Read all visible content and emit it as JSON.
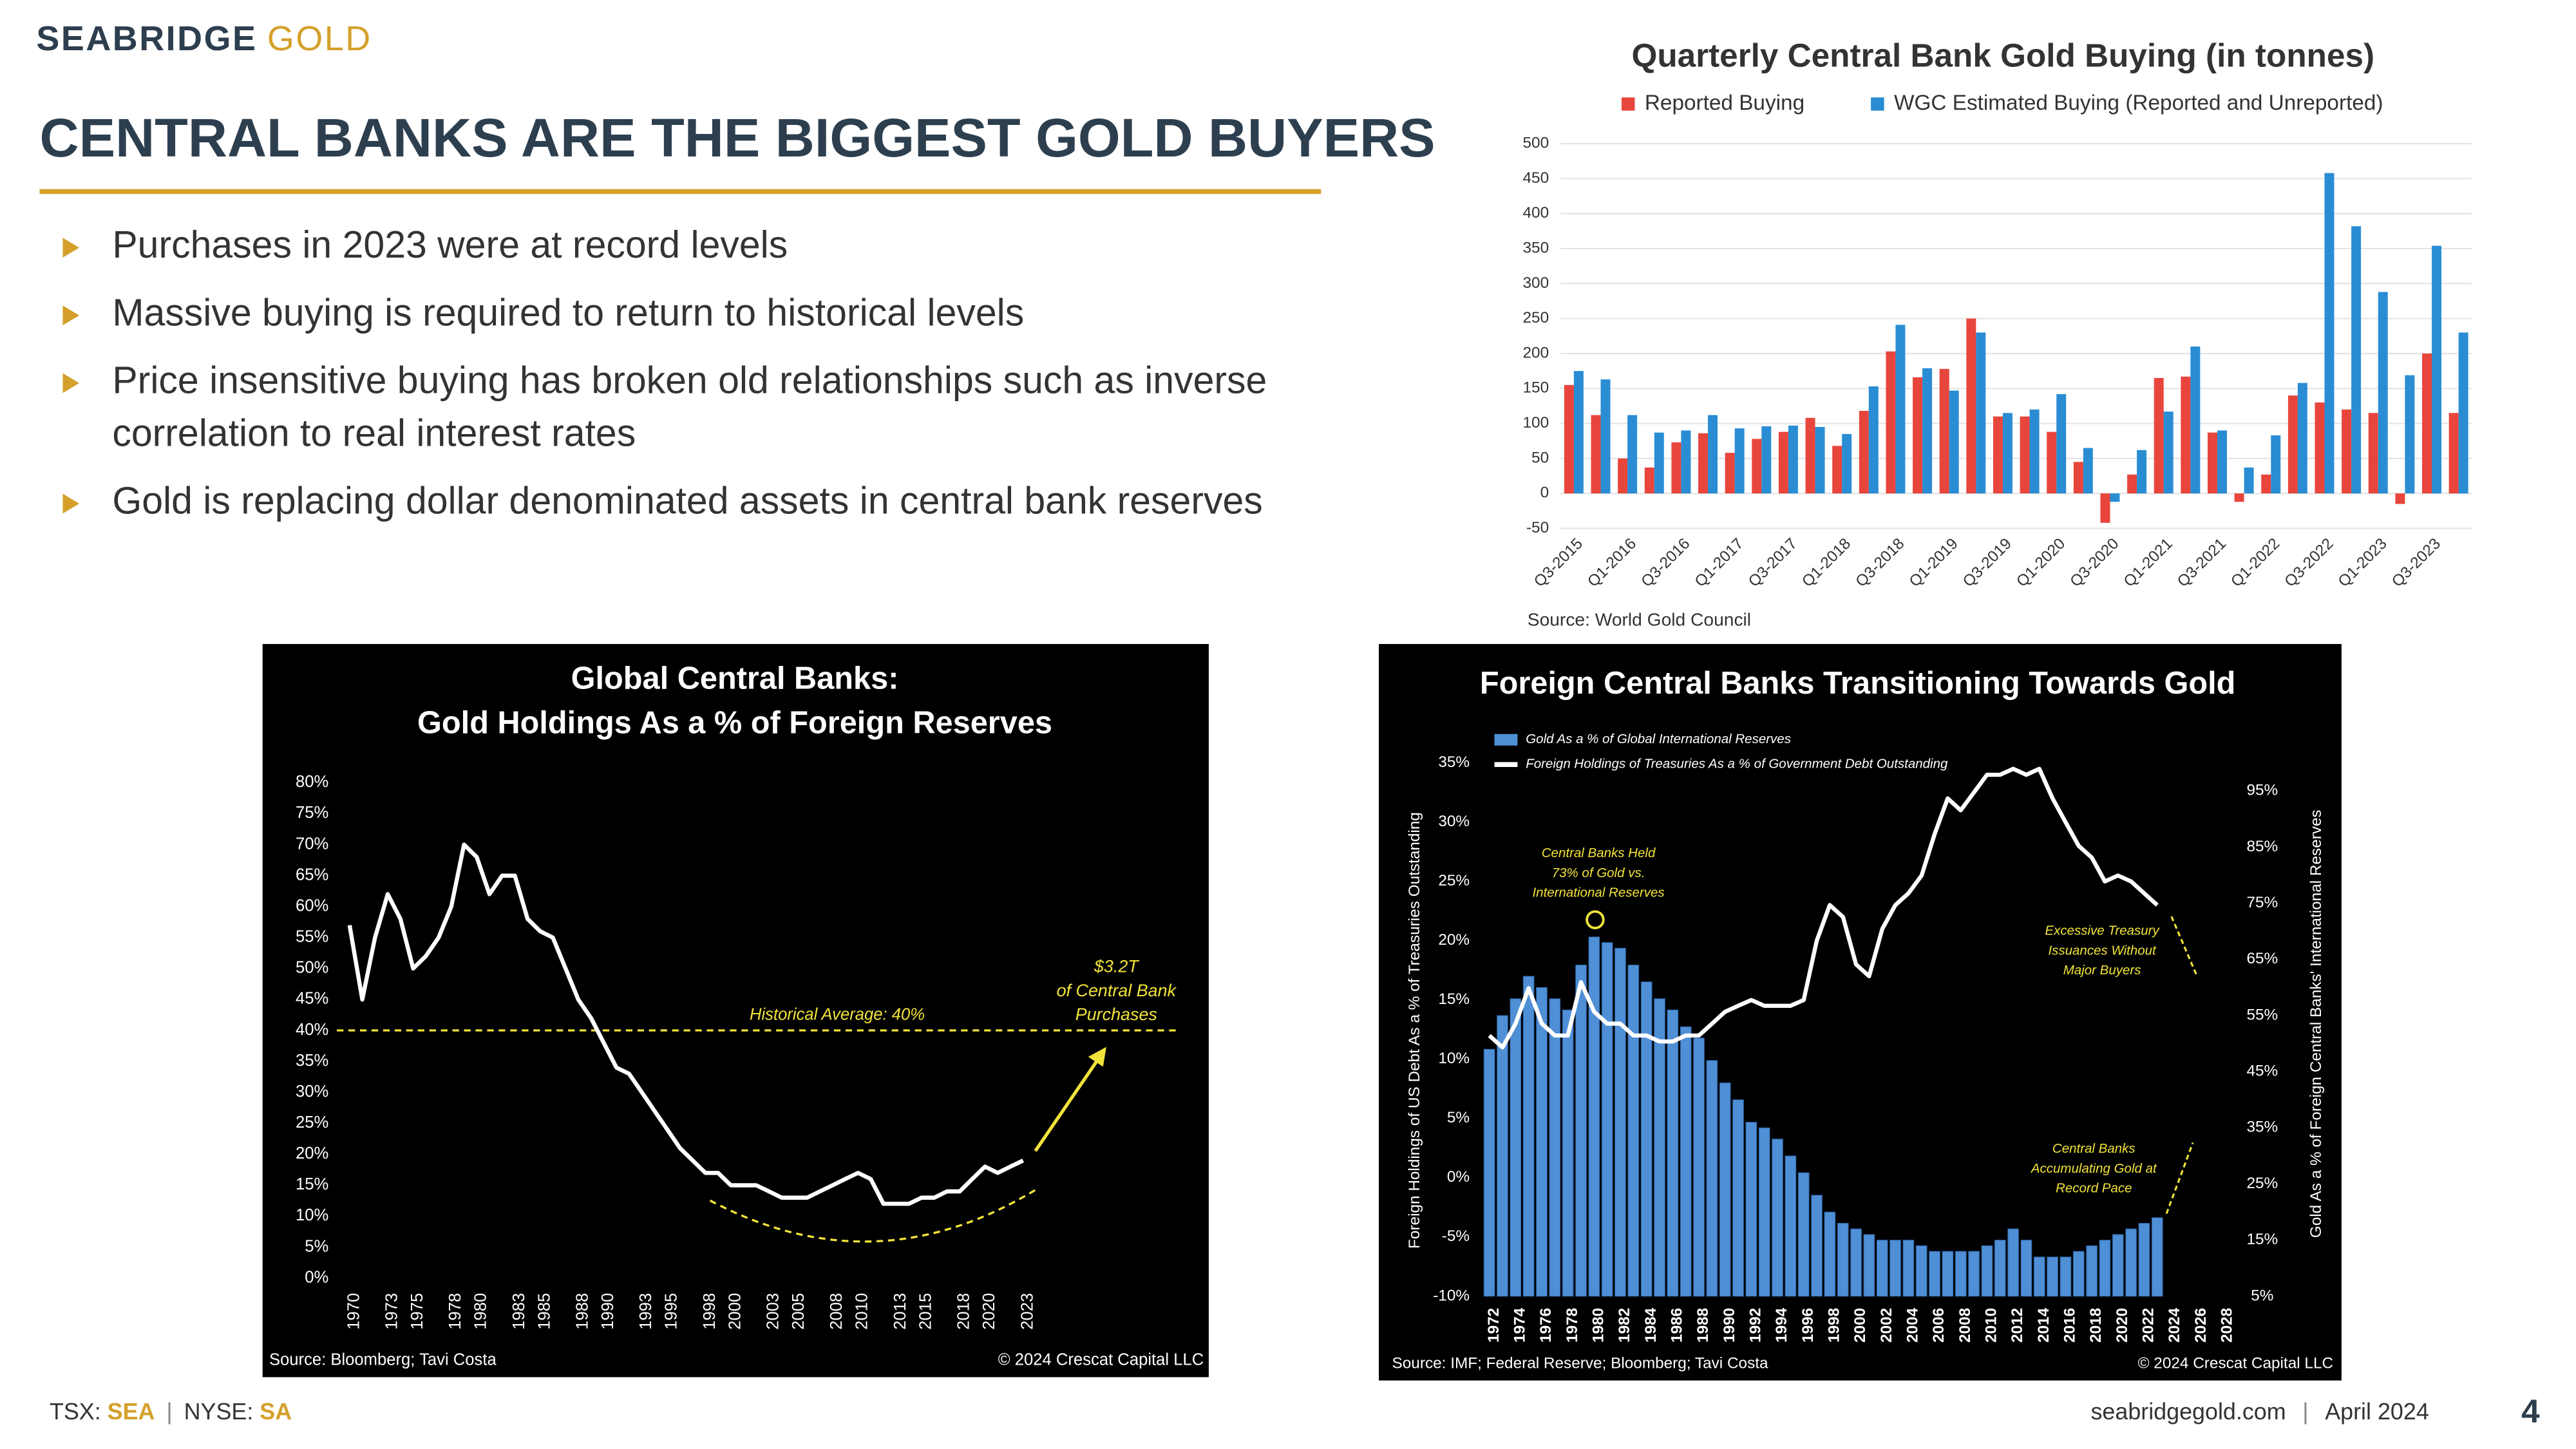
{
  "header": {
    "logo_brand": "SEABRIDGE",
    "logo_gold": "GOLD",
    "title": "CENTRAL BANKS ARE THE BIGGEST GOLD BUYERS"
  },
  "bullets": [
    [
      "Purchases in 2023 were at record levels"
    ],
    [
      "Massive buying is required to return to historical levels"
    ],
    [
      "Price insensitive buying has broken old relationships such as inverse",
      "correlation to real interest rates"
    ],
    [
      "Gold is replacing dollar denominated assets in central bank reserves"
    ]
  ],
  "footer": {
    "tsx_label": "TSX:",
    "tsx": "SEA",
    "separator": "|",
    "nyse_label": "NYSE:",
    "nyse": "SA",
    "website": "seabridgegold.com",
    "date": "April 2024",
    "page": "4"
  },
  "chart_data": [
    {
      "type": "bar",
      "title": "Quarterly Central Bank Gold Buying (in tonnes)",
      "categories": [
        "Q3-2015",
        null,
        "Q1-2016",
        null,
        "Q3-2016",
        null,
        "Q1-2017",
        null,
        "Q3-2017",
        null,
        "Q1-2018",
        null,
        "Q3-2018",
        null,
        "Q1-2019",
        null,
        "Q3-2019",
        null,
        "Q1-2020",
        null,
        "Q3-2020",
        null,
        "Q1-2021",
        null,
        "Q3-2021",
        null,
        "Q1-2022",
        null,
        "Q3-2022",
        null,
        "Q1-2023",
        null,
        "Q3-2023",
        null
      ],
      "series": [
        {
          "name": "Reported Buying",
          "color": "#e8453c",
          "values": [
            155,
            112,
            50,
            37,
            73,
            86,
            58,
            78,
            88,
            108,
            68,
            118,
            203,
            166,
            178,
            250,
            110,
            110,
            88,
            45,
            -42,
            27,
            165,
            167,
            87,
            -12,
            27,
            140,
            130,
            120,
            115,
            -15,
            200,
            115
          ]
        },
        {
          "name": "WGC Estimated Buying (Reported and Unreported)",
          "color": "#2a8dd4",
          "values": [
            175,
            163,
            112,
            87,
            90,
            112,
            93,
            96,
            97,
            95,
            85,
            153,
            241,
            179,
            147,
            230,
            115,
            120,
            142,
            65,
            -12,
            62,
            117,
            210,
            90,
            37,
            83,
            158,
            458,
            382,
            288,
            169,
            354,
            230
          ]
        }
      ],
      "ylim": [
        -50,
        500
      ],
      "yticks": [
        -50,
        0,
        50,
        100,
        150,
        200,
        250,
        300,
        350,
        400,
        450,
        500
      ],
      "grid": true,
      "source": "Source: World Gold Council"
    },
    {
      "type": "line",
      "title": [
        "Global Central Banks:",
        "Gold Holdings As a % of Foreign Reserves"
      ],
      "x": [
        1970,
        1971,
        1972,
        1973,
        1974,
        1975,
        1976,
        1977,
        1978,
        1979,
        1980,
        1981,
        1982,
        1983,
        1984,
        1985,
        1986,
        1987,
        1988,
        1989,
        1990,
        1991,
        1992,
        1993,
        1994,
        1995,
        1996,
        1997,
        1998,
        1999,
        2000,
        2001,
        2002,
        2003,
        2004,
        2005,
        2006,
        2007,
        2008,
        2009,
        2010,
        2011,
        2012,
        2013,
        2014,
        2015,
        2016,
        2017,
        2018,
        2019,
        2020,
        2021,
        2022,
        2023
      ],
      "values": [
        57,
        45,
        55,
        62,
        58,
        50,
        52,
        55,
        60,
        70,
        68,
        62,
        65,
        65,
        58,
        56,
        55,
        50,
        45,
        42,
        38,
        34,
        33,
        30,
        27,
        24,
        21,
        19,
        17,
        17,
        15,
        15,
        15,
        14,
        13,
        13,
        13,
        14,
        15,
        16,
        17,
        16,
        12,
        12,
        12,
        13,
        13,
        14,
        14,
        16,
        18,
        17,
        18,
        19
      ],
      "color": "#ffffff",
      "xlim": [
        1969,
        2035
      ],
      "xticks": [
        1970,
        1973,
        1975,
        1978,
        1980,
        1983,
        1985,
        1988,
        1990,
        1993,
        1995,
        1998,
        2000,
        2003,
        2005,
        2008,
        2010,
        2013,
        2015,
        2018,
        2020,
        2023
      ],
      "ylim": [
        0,
        80
      ],
      "yticks": [
        {
          "value": 0,
          "label": "0%"
        },
        {
          "value": 5,
          "label": "5%"
        },
        {
          "value": 10,
          "label": "10%"
        },
        {
          "value": 15,
          "label": "15%"
        },
        {
          "value": 20,
          "label": "20%"
        },
        {
          "value": 25,
          "label": "25%"
        },
        {
          "value": 30,
          "label": "30%"
        },
        {
          "value": 35,
          "label": "35%"
        },
        {
          "value": 40,
          "label": "40%"
        },
        {
          "value": 45,
          "label": "45%"
        },
        {
          "value": 50,
          "label": "50%"
        },
        {
          "value": 55,
          "label": "55%"
        },
        {
          "value": 60,
          "label": "60%"
        },
        {
          "value": 65,
          "label": "65%"
        },
        {
          "value": 70,
          "label": "70%"
        },
        {
          "value": 75,
          "label": "75%"
        },
        {
          "value": 80,
          "label": "80%"
        }
      ],
      "reference_line": {
        "value": 40,
        "label": "Historical Average: 40%"
      },
      "annotation": [
        "$3.2T",
        "of Central Bank",
        "Purchases"
      ],
      "source": "Source: Bloomberg; Tavi Costa",
      "copyright": "© 2024 Crescat Capital LLC"
    },
    {
      "type": "combo",
      "title": "Foreign Central Banks Transitioning Towards Gold",
      "x": [
        1972,
        1973,
        1974,
        1975,
        1976,
        1977,
        1978,
        1979,
        1980,
        1981,
        1982,
        1983,
        1984,
        1985,
        1986,
        1987,
        1988,
        1989,
        1990,
        1991,
        1992,
        1993,
        1994,
        1995,
        1996,
        1997,
        1998,
        1999,
        2000,
        2001,
        2002,
        2003,
        2004,
        2005,
        2006,
        2007,
        2008,
        2009,
        2010,
        2011,
        2012,
        2013,
        2014,
        2015,
        2016,
        2017,
        2018,
        2019,
        2020,
        2021,
        2022,
        2023
      ],
      "series": [
        {
          "name": "Gold As a % of Global International Reserves",
          "type": "bar",
          "axis": "y2",
          "color": "#4f8fd6",
          "values": [
            49,
            55,
            58,
            62,
            60,
            58,
            56,
            64,
            69,
            68,
            67,
            64,
            61,
            58,
            56,
            53,
            51,
            47,
            43,
            40,
            36,
            35,
            33,
            30,
            27,
            23,
            20,
            18,
            17,
            16,
            15,
            15,
            15,
            14,
            13,
            13,
            13,
            13,
            14,
            15,
            17,
            15,
            12,
            12,
            12,
            13,
            14,
            15,
            16,
            17,
            18,
            19
          ]
        },
        {
          "name": "Foreign Holdings of Treasuries As a % of Government Debt Outstanding",
          "type": "line",
          "color": "#ffffff",
          "values": [
            12,
            11,
            13,
            16,
            13,
            12,
            12,
            16.5,
            14,
            13,
            13,
            12,
            12,
            11.5,
            11.5,
            12,
            12,
            13,
            14,
            14.5,
            15,
            14.5,
            14.5,
            14.5,
            15,
            20,
            23,
            22,
            18,
            17,
            21,
            23,
            24,
            25.5,
            29,
            32,
            31,
            32.5,
            34,
            34,
            34.5,
            34,
            34.5,
            32,
            30,
            28,
            27,
            25,
            25.5,
            25,
            24,
            23
          ]
        }
      ],
      "xlim": [
        1971,
        2029
      ],
      "xticks": [
        1972,
        1974,
        1976,
        1978,
        1980,
        1982,
        1984,
        1986,
        1988,
        1990,
        1992,
        1994,
        1996,
        1998,
        2000,
        2002,
        2004,
        2006,
        2008,
        2010,
        2012,
        2014,
        2016,
        2018,
        2020,
        2022,
        2024,
        2026,
        2028
      ],
      "ylim": [
        -10,
        35
      ],
      "yticks": [
        {
          "value": -10,
          "label": "-10%"
        },
        {
          "value": -5,
          "label": "-5%"
        },
        {
          "value": 0,
          "label": "0%"
        },
        {
          "value": 5,
          "label": "5%"
        },
        {
          "value": 10,
          "label": "10%"
        },
        {
          "value": 15,
          "label": "15%"
        },
        {
          "value": 20,
          "label": "20%"
        },
        {
          "value": 25,
          "label": "25%"
        },
        {
          "value": 30,
          "label": "30%"
        },
        {
          "value": 35,
          "label": "35%"
        }
      ],
      "y2lim": [
        5,
        100
      ],
      "y2ticks": [
        {
          "value": 5,
          "label": "5%"
        },
        {
          "value": 15,
          "label": "15%"
        },
        {
          "value": 25,
          "label": "25%"
        },
        {
          "value": 35,
          "label": "35%"
        },
        {
          "value": 45,
          "label": "45%"
        },
        {
          "value": 55,
          "label": "55%"
        },
        {
          "value": 65,
          "label": "65%"
        },
        {
          "value": 75,
          "label": "75%"
        },
        {
          "value": 85,
          "label": "85%"
        },
        {
          "value": 95,
          "label": "95%"
        }
      ],
      "ylabel": "Foreign Holdings of US Debt As a % of Treasuries Outstanding",
      "y2label": "Gold As a % of Foreign Central Banks' International Reserves",
      "annotations": [
        [
          "Central Banks Held",
          "73% of Gold vs.",
          "International Reserves"
        ],
        [
          "Excessive Treasury",
          "Issuances Without",
          "Major Buyers"
        ],
        [
          "Central Banks",
          "Accumulating Gold at",
          "Record Pace"
        ]
      ],
      "source": "Source: IMF; Federal Reserve; Bloomberg; Tavi Costa",
      "copyright": "© 2024 Crescat Capital LLC"
    }
  ]
}
